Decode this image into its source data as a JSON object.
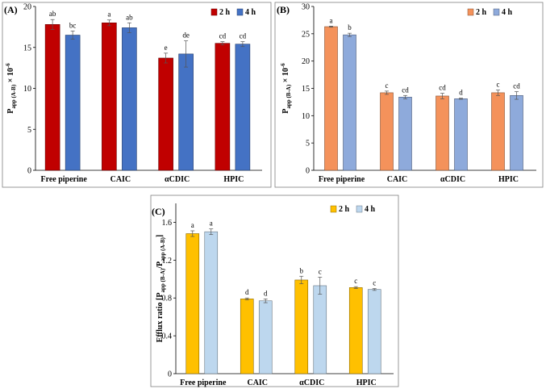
{
  "chart_data": [
    {
      "type": "bar",
      "panel": "(A)",
      "ylabel_main": "P",
      "ylabel_sub": "app (A-B)",
      "ylabel_suffix": " × 10",
      "ylabel_exp": "-6",
      "ylim": [
        0,
        20
      ],
      "yticks": [
        "0",
        "5",
        "10",
        "15",
        "20"
      ],
      "categories": [
        "Free piperine",
        "CAIC",
        "αCDIC",
        "HPIC"
      ],
      "series": [
        {
          "name": "2 h",
          "color": "#c00000",
          "values": [
            17.8,
            18.0,
            13.7,
            15.5
          ],
          "errors": [
            0.6,
            0.35,
            0.6,
            0.2
          ],
          "labels": [
            "ab",
            "a",
            "e",
            "cd"
          ]
        },
        {
          "name": "4 h",
          "color": "#4472c4",
          "values": [
            16.5,
            17.4,
            14.2,
            15.4
          ],
          "errors": [
            0.5,
            0.6,
            1.6,
            0.3
          ],
          "labels": [
            "bc",
            "ab",
            "de",
            "cd"
          ]
        }
      ],
      "legend": "top-right"
    },
    {
      "type": "bar",
      "panel": "(B)",
      "ylabel_main": "P",
      "ylabel_sub": "app (B-A)",
      "ylabel_suffix": " × 10",
      "ylabel_exp": "-6",
      "ylim": [
        0,
        30
      ],
      "yticks": [
        "0",
        "5",
        "10",
        "15",
        "20",
        "25",
        "30"
      ],
      "categories": [
        "Free piperine",
        "CAIC",
        "αCDIC",
        "HPIC"
      ],
      "series": [
        {
          "name": "2 h",
          "color": "#f4925b",
          "values": [
            26.3,
            14.2,
            13.6,
            14.2
          ],
          "errors": [
            0.1,
            0.3,
            0.5,
            0.5
          ],
          "labels": [
            "a",
            "c",
            "cd",
            "c"
          ]
        },
        {
          "name": "4 h",
          "color": "#8eaadb",
          "values": [
            24.8,
            13.4,
            13.1,
            13.7
          ],
          "errors": [
            0.3,
            0.3,
            0.1,
            0.7
          ],
          "labels": [
            "b",
            "cd",
            "d",
            "cd"
          ]
        }
      ],
      "legend": "top-right"
    },
    {
      "type": "bar",
      "panel": "(C)",
      "ylabel_main": "Efflux ratio [P",
      "ylabel_sub": "app (B-A)",
      "ylabel_mid": "/P",
      "ylabel_sub2": "app (A-B)",
      "ylabel_end": "]",
      "ylim": [
        0,
        1.8
      ],
      "yticks": [
        "0",
        "0.4",
        "0.8",
        "1.2",
        "1.6"
      ],
      "ytick_values": [
        0,
        0.4,
        0.8,
        1.2,
        1.6
      ],
      "categories": [
        "Free piperine",
        "CAIC",
        "αCDIC",
        "HPIC"
      ],
      "series": [
        {
          "name": "2 h",
          "color": "#ffc000",
          "values": [
            1.48,
            0.79,
            0.99,
            0.91
          ],
          "errors": [
            0.03,
            0.01,
            0.04,
            0.01
          ],
          "labels": [
            "a",
            "d",
            "b",
            "c"
          ]
        },
        {
          "name": "4 h",
          "color": "#bdd7ee",
          "values": [
            1.5,
            0.77,
            0.93,
            0.89
          ],
          "errors": [
            0.03,
            0.02,
            0.09,
            0.01
          ],
          "labels": [
            "a",
            "d",
            "c",
            "c"
          ]
        }
      ],
      "legend": "top-right"
    }
  ]
}
